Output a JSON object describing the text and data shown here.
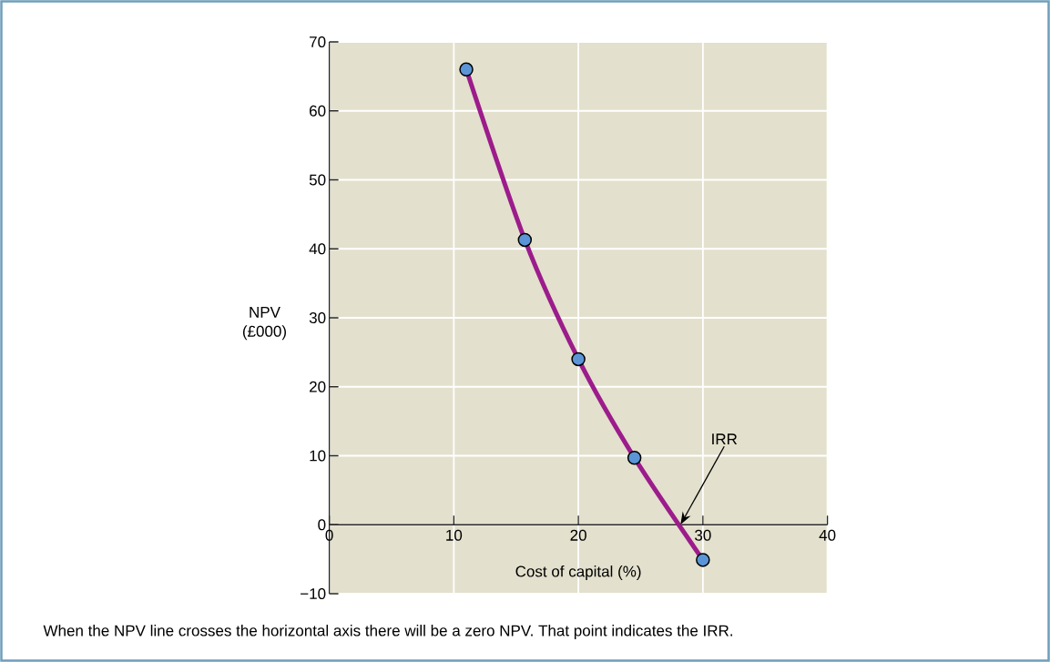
{
  "chart_data": {
    "type": "line",
    "xlabel": "Cost of capital (%)",
    "ylabel": "NPV (£000)",
    "x": [
      11,
      15.7,
      20,
      24.5,
      30
    ],
    "series": [
      {
        "color": "#9c1c8c",
        "marker": "none",
        "values": [
          66,
          41.3,
          24,
          9.7,
          -5.1
        ]
      },
      {
        "type": "scatter",
        "color": "#5b95d8",
        "marker": "circle",
        "values": [
          66,
          41.3,
          24,
          9.7,
          -5.1
        ]
      }
    ],
    "xlim": [
      0,
      40
    ],
    "xticks": [
      0,
      10,
      20,
      30,
      40
    ],
    "ylim": [
      -10,
      70
    ],
    "yticks": [
      {
        "value": -10,
        "label": "−10"
      },
      0,
      10,
      20,
      30,
      40,
      50,
      60,
      70
    ],
    "grid": true,
    "line_style": "solid",
    "annotations": [
      {
        "text": "IRR",
        "x": 28.2,
        "y": 0
      },
      "When the NPV line crosses the horizontal axis there will be a zero NPV. That point indicates the IRR."
    ]
  }
}
